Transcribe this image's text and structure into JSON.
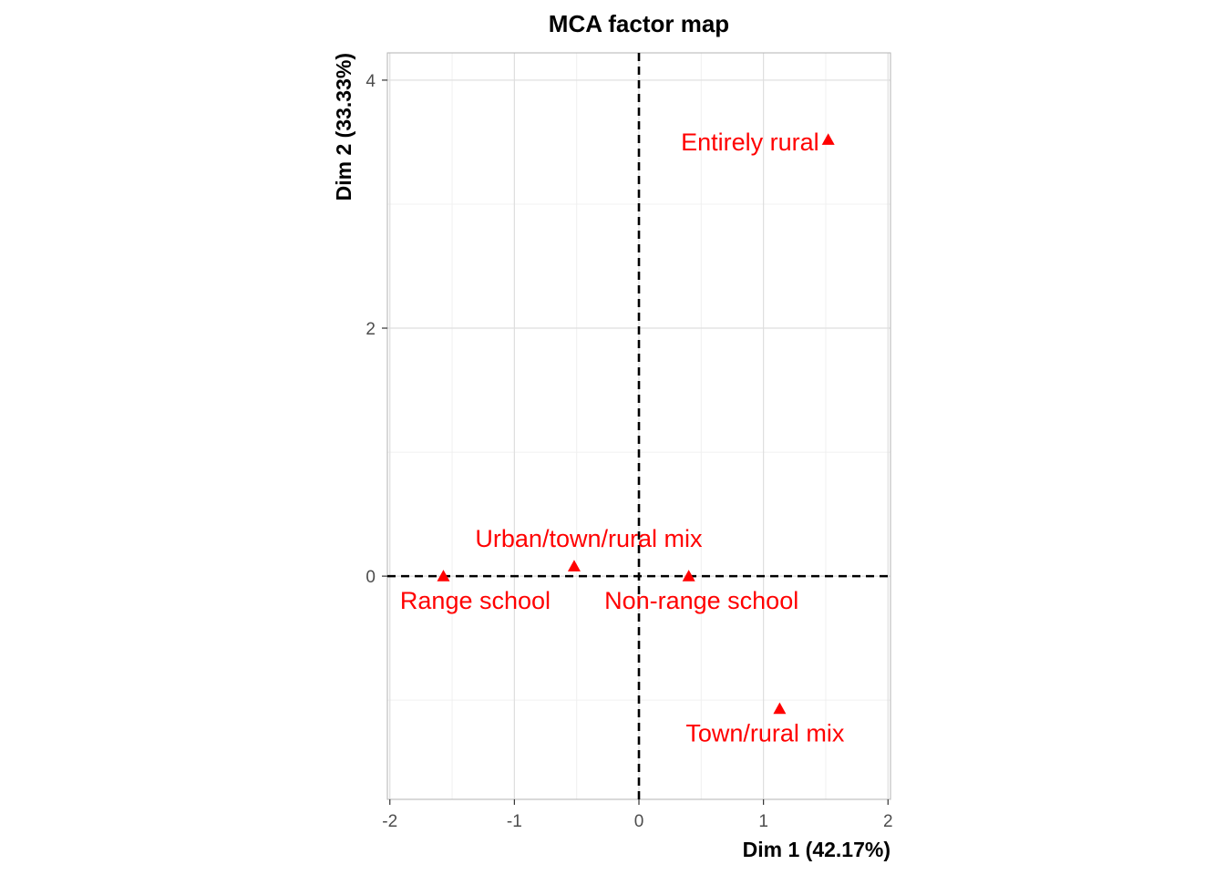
{
  "chart_data": {
    "type": "scatter",
    "title": "MCA factor map",
    "xlabel": "Dim 1 (42.17%)",
    "ylabel": "Dim 2 (33.33%)",
    "xlim": [
      -2.02,
      2.02
    ],
    "ylim": [
      -1.8,
      4.22
    ],
    "x_ticks": [
      -2,
      -1,
      0,
      1,
      2
    ],
    "y_ticks": [
      0,
      2,
      4
    ],
    "x_tick_labels": [
      "-2",
      "-1",
      "0",
      "1",
      "2"
    ],
    "y_tick_labels": [
      "0",
      "2",
      "4"
    ],
    "grid": true,
    "reference_lines": {
      "x": 0,
      "y": 0,
      "style": "dashed"
    },
    "marker": "triangle",
    "color": "#ff0000",
    "points": [
      {
        "label": "Entirely rural",
        "x": 1.52,
        "y": 3.52,
        "label_anchor": "end"
      },
      {
        "label": "Urban/town/rural mix",
        "x": -0.52,
        "y": 0.08,
        "label_anchor": "above"
      },
      {
        "label": "Range school",
        "x": -1.57,
        "y": 0.0,
        "label_anchor": "below"
      },
      {
        "label": "Non-range school",
        "x": 0.4,
        "y": 0.0,
        "label_anchor": "below"
      },
      {
        "label": "Town/rural mix",
        "x": 1.13,
        "y": -1.07,
        "label_anchor": "below"
      }
    ]
  }
}
